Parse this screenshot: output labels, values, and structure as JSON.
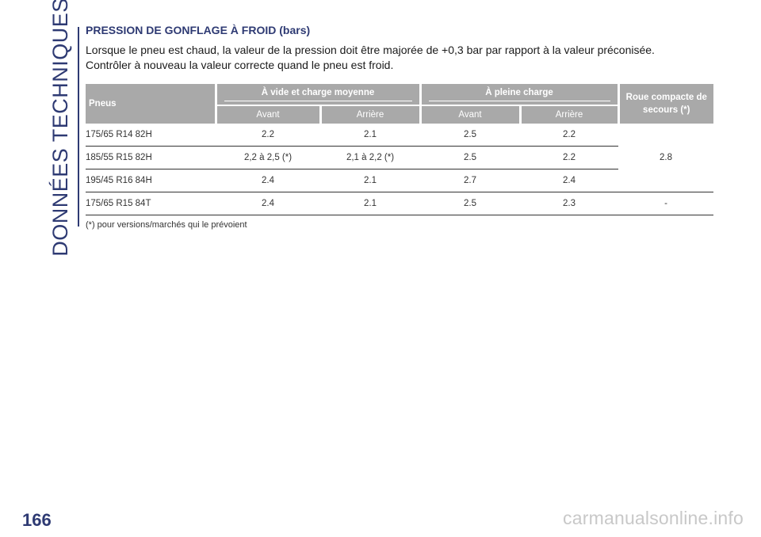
{
  "side_title": "DONNÉES TECHNIQUES",
  "page_number": "166",
  "watermark": "carmanualsonline.info",
  "section": {
    "heading": "PRESSION DE GONFLAGE À FROID (bars)",
    "paragraph1": "Lorsque le pneu est chaud, la valeur de la pression doit être majorée de +0,3 bar par rapport à la valeur préconisée.",
    "paragraph2": "Contrôler à nouveau la valeur correcte quand le pneu est froid."
  },
  "table": {
    "col_tyres": "Pneus",
    "group_empty": "À vide et charge moyenne",
    "group_full": "À pleine charge",
    "col_spare": "Roue compacte de secours (*)",
    "sub_front": "Avant",
    "sub_rear": "Arrière",
    "rows": [
      {
        "tyre": "175/65 R14 82H",
        "empty_front": "2.2",
        "empty_rear": "2.1",
        "full_front": "2.5",
        "full_rear": "2.2"
      },
      {
        "tyre": "185/55 R15 82H",
        "empty_front": "2,2 à 2,5 (*)",
        "empty_rear": "2,1 à 2,2 (*)",
        "full_front": "2.5",
        "full_rear": "2.2"
      },
      {
        "tyre": "195/45 R16 84H",
        "empty_front": "2.4",
        "empty_rear": "2.1",
        "full_front": "2.7",
        "full_rear": "2.4"
      },
      {
        "tyre": "175/65 R15 84T",
        "empty_front": "2.4",
        "empty_rear": "2.1",
        "full_front": "2.5",
        "full_rear": "2.3",
        "spare": "-"
      }
    ],
    "spare_merged": "2.8",
    "footnote": "(*) pour versions/marchés qui le prévoient"
  }
}
